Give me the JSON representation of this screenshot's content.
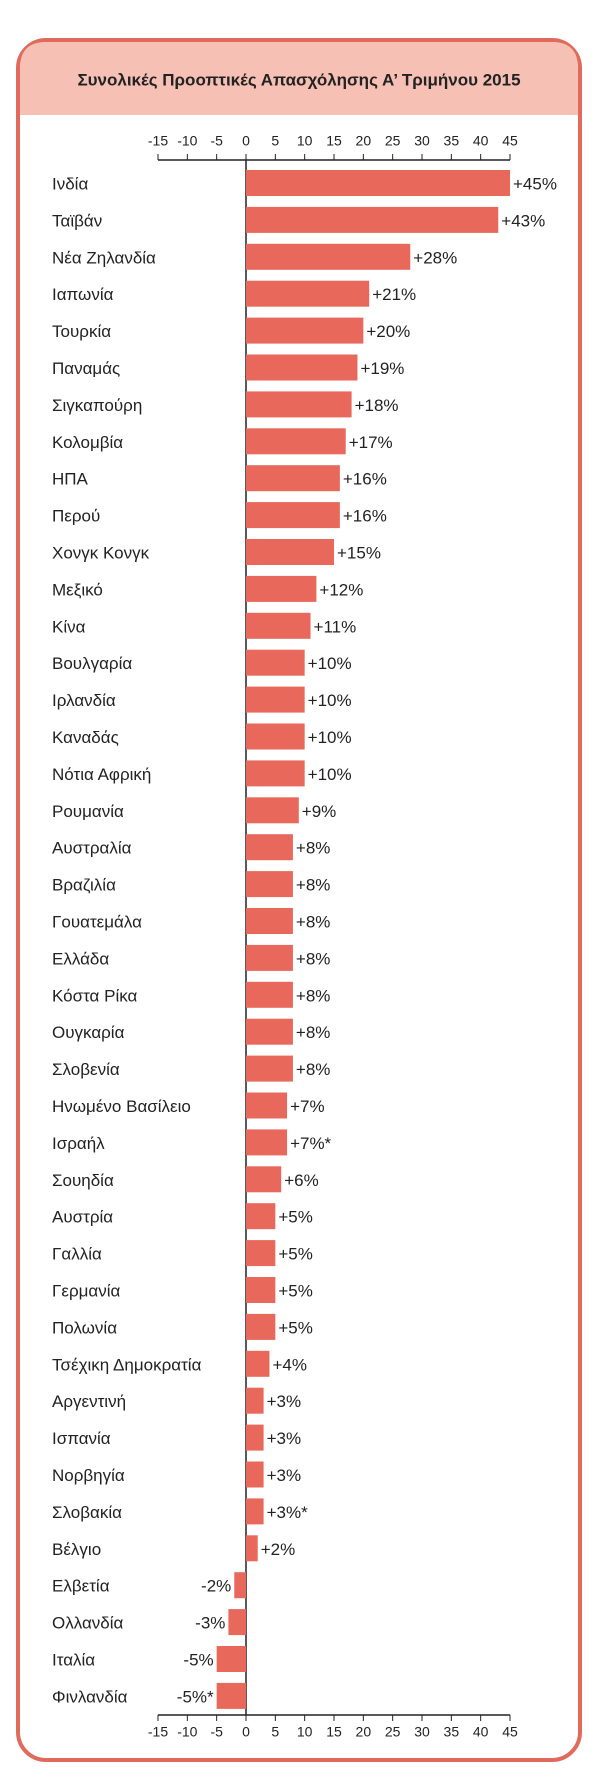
{
  "chart_data": {
    "type": "bar",
    "orientation": "horizontal",
    "title": "Συνολικές Προοπτικές Απασχόλησης Α’ Τριμήνου 2015",
    "categories": [
      "Ινδία",
      "Ταϊβάν",
      "Νέα Ζηλανδία",
      "Ιαπωνία",
      "Τουρκία",
      "Παναμάς",
      "Σιγκαπούρη",
      "Κολομβία",
      "ΗΠΑ",
      "Περού",
      "Χονγκ Κονγκ",
      "Μεξικό",
      "Κίνα",
      "Βουλγαρία",
      "Ιρλανδία",
      "Καναδάς",
      "Νότια Αφρική",
      "Ρουμανία",
      "Αυστραλία",
      "Βραζιλία",
      "Γουατεμάλα",
      "Ελλάδα",
      "Κόστα Ρίκα",
      "Ουγκαρία",
      "Σλοβενία",
      "Ηνωμένο Βασίλειο",
      "Ισραήλ",
      "Σουηδία",
      "Αυστρία",
      "Γαλλία",
      "Γερμανία",
      "Πολωνία",
      "Τσέχικη Δημοκρατία",
      "Αργεντινή",
      "Ισπανία",
      "Νορβηγία",
      "Σλοβακία",
      "Βέλγιο",
      "Ελβετία",
      "Ολλανδία",
      "Ιταλία",
      "Φινλανδία"
    ],
    "values": [
      45,
      43,
      28,
      21,
      20,
      19,
      18,
      17,
      16,
      16,
      15,
      12,
      11,
      10,
      10,
      10,
      10,
      9,
      8,
      8,
      8,
      8,
      8,
      8,
      8,
      7,
      7,
      6,
      5,
      5,
      5,
      5,
      4,
      3,
      3,
      3,
      3,
      2,
      -2,
      -3,
      -5,
      -5
    ],
    "value_labels": [
      "+45%",
      "+43%",
      "+28%",
      "+21%",
      "+20%",
      "+19%",
      "+18%",
      "+17%",
      "+16%",
      "+16%",
      "+15%",
      "+12%",
      "+11%",
      "+10%",
      "+10%",
      "+10%",
      "+10%",
      "+9%",
      "+8%",
      "+8%",
      "+8%",
      "+8%",
      "+8%",
      "+8%",
      "+8%",
      "+7%",
      "+7%*",
      "+6%",
      "+5%",
      "+5%",
      "+5%",
      "+5%",
      "+4%",
      "+3%",
      "+3%",
      "+3%",
      "+3%*",
      "+2%",
      "-2%",
      "-3%",
      "-5%",
      "-5%*"
    ],
    "color": "#e8695c",
    "xlim": [
      -15,
      45
    ],
    "xticks": [
      -15,
      -10,
      -5,
      0,
      5,
      10,
      15,
      20,
      25,
      30,
      35,
      40,
      45
    ]
  }
}
